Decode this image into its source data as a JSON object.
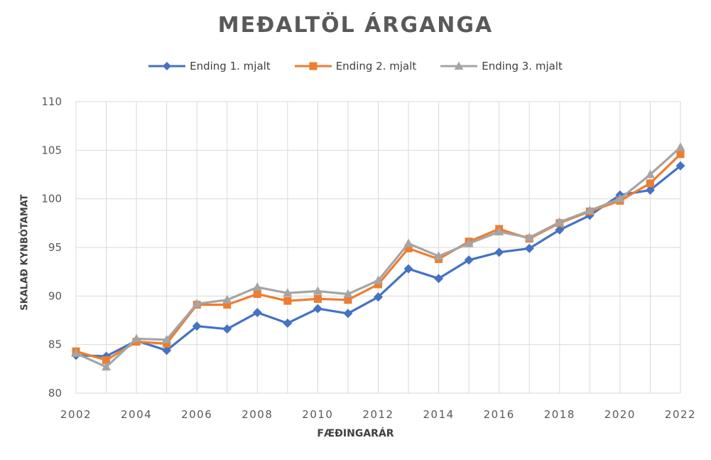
{
  "chart_data": {
    "type": "line",
    "title": "MEÐALTÖL ÁRGANGA",
    "xlabel": "FÆÐINGARÁR",
    "ylabel": "SKALAÐ KYNBÓTAMAT",
    "x": [
      2002,
      2003,
      2004,
      2005,
      2006,
      2007,
      2008,
      2009,
      2010,
      2011,
      2012,
      2013,
      2014,
      2015,
      2016,
      2017,
      2018,
      2019,
      2020,
      2021,
      2022
    ],
    "xlim": [
      2002,
      2022
    ],
    "ylim": [
      80,
      110
    ],
    "xticks": [
      "2002",
      "2004",
      "2006",
      "2008",
      "2010",
      "2012",
      "2014",
      "2016",
      "2018",
      "2020",
      "2022"
    ],
    "yticks": [
      "80",
      "85",
      "90",
      "95",
      "100",
      "105",
      "110"
    ],
    "grid": true,
    "legend_position": "top",
    "series": [
      {
        "name": "Ending 1. mjalt",
        "color": "#4472C4",
        "marker": "diamond",
        "values": [
          83.9,
          83.8,
          85.4,
          84.4,
          86.9,
          86.6,
          88.3,
          87.2,
          88.7,
          88.2,
          89.9,
          92.8,
          91.8,
          93.7,
          94.5,
          94.9,
          96.8,
          98.3,
          100.4,
          100.9,
          103.4
        ]
      },
      {
        "name": "Ending 2. mjalt",
        "color": "#ED7D31",
        "marker": "square",
        "values": [
          84.3,
          83.4,
          85.3,
          85.1,
          89.1,
          89.1,
          90.2,
          89.5,
          89.7,
          89.6,
          91.2,
          94.9,
          93.8,
          95.6,
          96.9,
          95.9,
          97.5,
          98.7,
          99.8,
          101.6,
          104.6
        ]
      },
      {
        "name": "Ending 3. mjalt",
        "color": "#A5A5A5",
        "marker": "triangle",
        "values": [
          84.1,
          82.7,
          85.6,
          85.5,
          89.2,
          89.6,
          90.9,
          90.3,
          90.5,
          90.2,
          91.6,
          95.4,
          94.1,
          95.4,
          96.6,
          96.0,
          97.6,
          98.8,
          100.0,
          102.5,
          105.3
        ]
      }
    ]
  }
}
